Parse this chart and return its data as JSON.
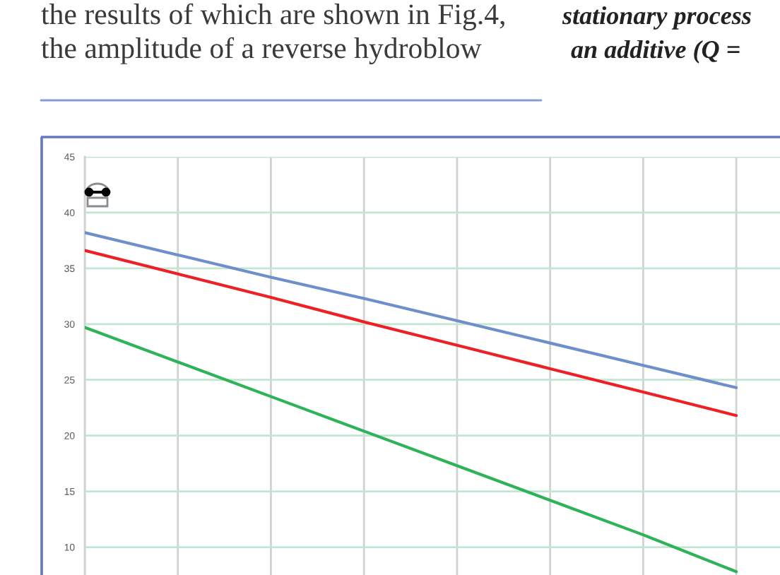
{
  "chart_data": {
    "type": "line",
    "categories": [
      null,
      null,
      null,
      null,
      null,
      null,
      null,
      null
    ],
    "series": [
      {
        "color": "#6f8fcb",
        "values": [
          38.2,
          36.2,
          34.2,
          32.3,
          30.3,
          28.3,
          26.3,
          24.3
        ]
      },
      {
        "color": "#ee2024",
        "values": [
          36.6,
          34.5,
          32.4,
          30.2,
          28.1,
          26.0,
          23.9,
          21.8
        ]
      },
      {
        "color": "#2fb358",
        "values": [
          29.7,
          26.6,
          23.5,
          20.4,
          17.3,
          14.2,
          11.1,
          7.8
        ]
      }
    ],
    "ylim": [
      7.5,
      45
    ],
    "yticks": [
      10,
      15,
      20,
      25,
      30,
      35,
      40,
      45
    ],
    "tick_labels": "y",
    "grid": true,
    "line_style": "solid",
    "annotations": [
      "the results of which are shown in Fig.4,",
      "the amplitude of a reverse hydroblow",
      "stationary process",
      "an additive (Q ="
    ]
  }
}
